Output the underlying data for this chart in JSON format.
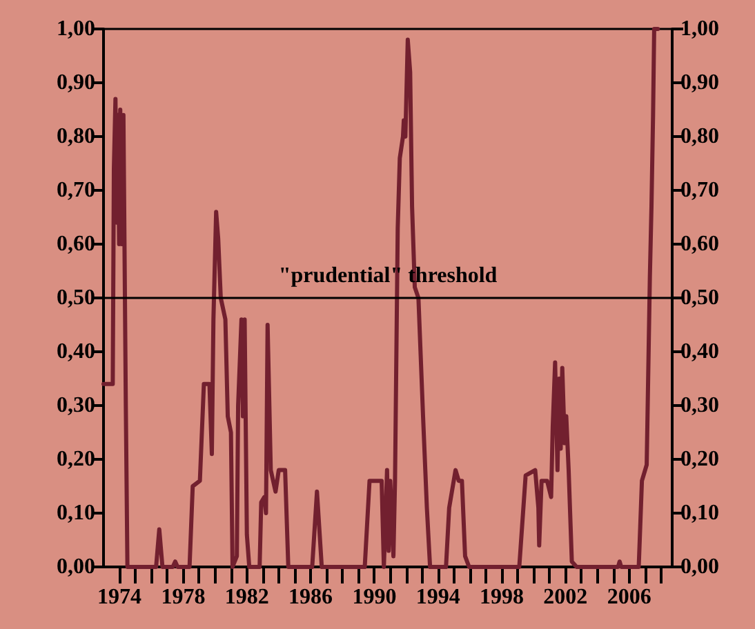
{
  "chart_data": {
    "type": "line",
    "x": [
      1973.0,
      1973.58,
      1973.65,
      1973.75,
      1973.82,
      1973.9,
      1973.98,
      1974.05,
      1974.15,
      1974.25,
      1974.4,
      1974.5,
      1974.65,
      1976.3,
      1976.5,
      1976.7,
      1977.35,
      1977.5,
      1977.65,
      1978.4,
      1978.6,
      1979.05,
      1979.3,
      1979.65,
      1979.8,
      1979.9,
      1980.07,
      1980.2,
      1980.36,
      1980.65,
      1980.8,
      1981.0,
      1981.1,
      1981.37,
      1981.45,
      1981.66,
      1981.75,
      1981.86,
      1982.0,
      1982.15,
      1982.8,
      1982.9,
      1983.1,
      1983.2,
      1983.3,
      1983.5,
      1983.8,
      1984.0,
      1984.4,
      1984.6,
      1986.1,
      1986.4,
      1986.7,
      1989.4,
      1989.7,
      1990.46,
      1990.6,
      1990.8,
      1990.9,
      1991.0,
      1991.2,
      1991.3,
      1991.47,
      1991.6,
      1991.8,
      1991.85,
      1991.95,
      1992.1,
      1992.25,
      1992.37,
      1992.54,
      1992.77,
      1993.06,
      1993.3,
      1993.5,
      1994.5,
      1994.7,
      1995.1,
      1995.3,
      1995.5,
      1995.7,
      1995.95,
      1999.1,
      1999.5,
      2000.1,
      2000.3,
      2000.35,
      2000.5,
      2000.85,
      2001.1,
      2001.2,
      2001.35,
      2001.5,
      2001.6,
      2001.7,
      2001.8,
      2001.95,
      2002.05,
      2002.2,
      2002.4,
      2002.7,
      2005.3,
      2005.4,
      2005.5,
      2006.6,
      2006.8,
      2007.1,
      2007.3,
      2007.4,
      2007.5,
      2007.57,
      2007.8
    ],
    "series": [
      {
        "color": "#72202f",
        "values": [
          0.34,
          0.34,
          0.74,
          0.87,
          0.64,
          0.84,
          0.6,
          0.85,
          0.6,
          0.84,
          0.3,
          0,
          0,
          0,
          0.07,
          0,
          0,
          0.01,
          0,
          0,
          0.15,
          0.16,
          0.34,
          0.34,
          0.21,
          0.46,
          0.66,
          0.61,
          0.5,
          0.46,
          0.28,
          0.25,
          0,
          0.02,
          0.3,
          0.46,
          0.28,
          0.46,
          0.06,
          0,
          0,
          0.12,
          0.13,
          0.1,
          0.45,
          0.18,
          0.14,
          0.18,
          0.18,
          0,
          0,
          0.14,
          0,
          0,
          0.16,
          0.16,
          0,
          0.18,
          0.03,
          0.16,
          0.02,
          0.16,
          0.63,
          0.76,
          0.8,
          0.83,
          0.8,
          0.98,
          0.92,
          0.67,
          0.52,
          0.5,
          0.28,
          0.11,
          0,
          0,
          0.11,
          0.18,
          0.16,
          0.16,
          0.02,
          0,
          0,
          0.17,
          0.18,
          0.11,
          0.04,
          0.16,
          0.16,
          0.13,
          0.26,
          0.38,
          0.18,
          0.35,
          0.22,
          0.37,
          0.23,
          0.28,
          0.18,
          0.01,
          0,
          0,
          0.01,
          0,
          0,
          0.16,
          0.19,
          0.54,
          0.67,
          0.84,
          1.0,
          1.0
        ]
      }
    ],
    "xlim": [
      1973,
      2008.7
    ],
    "xticks": [
      1974,
      {
        "value": 1975,
        "label": null
      },
      {
        "value": 1976,
        "label": null
      },
      {
        "value": 1977,
        "label": null
      },
      1978,
      {
        "value": 1979,
        "label": null
      },
      {
        "value": 1980,
        "label": null
      },
      {
        "value": 1981,
        "label": null
      },
      1982,
      {
        "value": 1983,
        "label": null
      },
      {
        "value": 1984,
        "label": null
      },
      {
        "value": 1985,
        "label": null
      },
      1986,
      {
        "value": 1987,
        "label": null
      },
      {
        "value": 1988,
        "label": null
      },
      {
        "value": 1989,
        "label": null
      },
      1990,
      {
        "value": 1991,
        "label": null
      },
      {
        "value": 1992,
        "label": null
      },
      {
        "value": 1993,
        "label": null
      },
      1994,
      {
        "value": 1995,
        "label": null
      },
      {
        "value": 1996,
        "label": null
      },
      {
        "value": 1997,
        "label": null
      },
      1998,
      {
        "value": 1999,
        "label": null
      },
      {
        "value": 2000,
        "label": null
      },
      {
        "value": 2001,
        "label": null
      },
      2002,
      {
        "value": 2003,
        "label": null
      },
      {
        "value": 2004,
        "label": null
      },
      {
        "value": 2005,
        "label": null
      },
      2006,
      {
        "value": 2007,
        "label": null
      },
      {
        "value": 2008,
        "label": null
      }
    ],
    "ylim": [
      0,
      1
    ],
    "yticks": [
      {
        "value": 0,
        "label": "0,00"
      },
      {
        "value": 0.1,
        "label": "0,10"
      },
      {
        "value": 0.2,
        "label": "0,20"
      },
      {
        "value": 0.3,
        "label": "0,30"
      },
      {
        "value": 0.4,
        "label": "0,40"
      },
      {
        "value": 0.5,
        "label": "0,50"
      },
      {
        "value": 0.6,
        "label": "0,60"
      },
      {
        "value": 0.7,
        "label": "0,70"
      },
      {
        "value": 0.8,
        "label": "0,80"
      },
      {
        "value": 0.9,
        "label": "0,90"
      },
      {
        "value": 1,
        "label": "1,00"
      }
    ],
    "y2lim": [
      0,
      1
    ],
    "y2ticks": [
      {
        "value": 0,
        "label": "0,00"
      },
      {
        "value": 0.1,
        "label": "0,10"
      },
      {
        "value": 0.2,
        "label": "0,20"
      },
      {
        "value": 0.3,
        "label": "0,30"
      },
      {
        "value": 0.4,
        "label": "0,40"
      },
      {
        "value": 0.5,
        "label": "0,50"
      },
      {
        "value": 0.6,
        "label": "0,60"
      },
      {
        "value": 0.7,
        "label": "0,70"
      },
      {
        "value": 0.8,
        "label": "0,80"
      },
      {
        "value": 0.9,
        "label": "0,90"
      },
      {
        "value": 1,
        "label": "1,00"
      }
    ],
    "ref_lines": [
      {
        "axis": "y",
        "value": 0.5,
        "label": "\"prudential\" threshold",
        "color": "#000000"
      }
    ],
    "grid": false,
    "marker": "none",
    "line_style": "solid"
  }
}
